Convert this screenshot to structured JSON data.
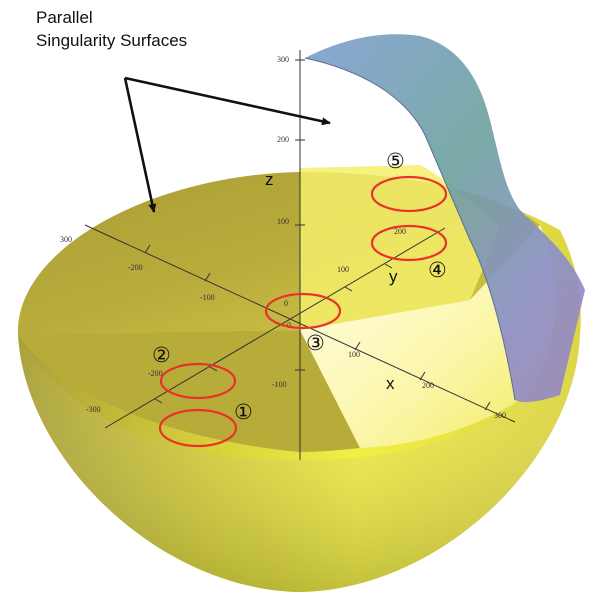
{
  "caption": {
    "line1": "Parallel",
    "line2": "Singularity Surfaces"
  },
  "axes": {
    "x_label": "x",
    "y_label": "y",
    "z_label": "z"
  },
  "x_ticks": [
    "-300",
    "-200",
    "-100",
    "0",
    "100",
    "200",
    "300"
  ],
  "y_ticks": [
    "-100",
    "100",
    "200"
  ],
  "z_ticks": [
    "-100",
    "100",
    "200",
    "300"
  ],
  "left_ticks": [
    "300",
    "-200",
    "-100",
    "-200",
    "-300"
  ],
  "markers": [
    "①",
    "②",
    "③",
    "④",
    "⑤"
  ],
  "colors": {
    "hemisphere_top": "#b3a63a",
    "hemisphere_side": "#e8e23a",
    "circle": "#e8322a",
    "surface": "#8aa6c8",
    "arrow": "#111111"
  }
}
